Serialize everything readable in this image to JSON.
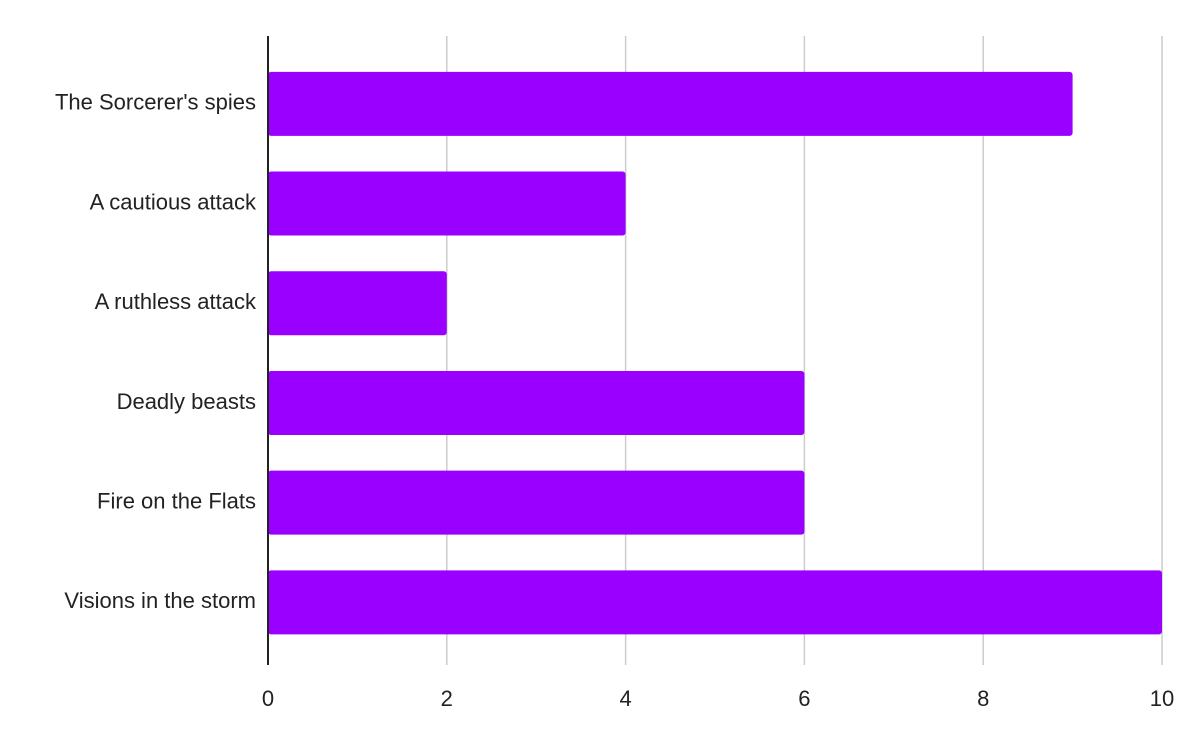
{
  "chart_data": {
    "type": "bar",
    "orientation": "horizontal",
    "categories": [
      "The Sorcerer's spies",
      "A cautious attack",
      "A ruthless attack",
      "Deadly beasts",
      "Fire on the Flats",
      "Visions in the storm"
    ],
    "values": [
      9,
      4,
      2,
      6,
      6,
      10
    ],
    "xlim": [
      0,
      10
    ],
    "xticks": [
      0,
      2,
      4,
      6,
      8,
      10
    ],
    "grid": true,
    "legend": "none",
    "title": "",
    "xlabel": "",
    "ylabel": "",
    "colors": {
      "bar": "#9900ff",
      "grid": "#cccccc",
      "axis": "#222222"
    }
  }
}
